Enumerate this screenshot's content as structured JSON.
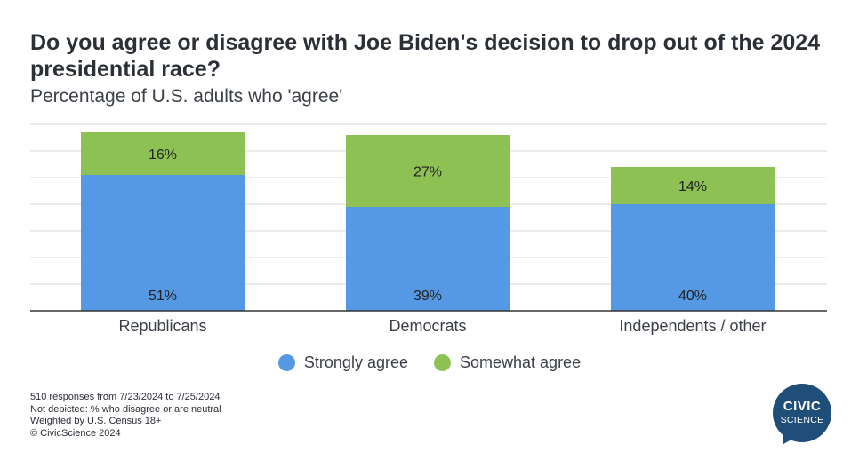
{
  "chart_data": {
    "type": "bar",
    "stacked": true,
    "title": "Do you agree or disagree with Joe Biden's decision to drop out of the 2024 presidential race?",
    "subtitle": "Percentage of U.S. adults who 'agree'",
    "categories": [
      "Republicans",
      "Democrats",
      "Independents / other"
    ],
    "series": [
      {
        "name": "Strongly agree",
        "values": [
          51,
          39,
          40
        ],
        "labels": [
          "51%",
          "39%",
          "40%"
        ],
        "color": "#5599e5"
      },
      {
        "name": "Somewhat agree",
        "values": [
          16,
          27,
          14
        ],
        "labels": [
          "16%",
          "27%",
          "14%"
        ],
        "color": "#8dc153"
      }
    ],
    "ylim": [
      0,
      70
    ],
    "grid": true,
    "legend_position": "bottom"
  },
  "notes": [
    "510 responses from 7/23/2024 to 7/25/2024",
    "Not depicted: % who disagree or are neutral",
    "Weighted by U.S. Census 18+",
    "© CivicScience 2024"
  ],
  "logo": {
    "line1": "CIVIC",
    "line2": "SCIENCE",
    "color": "#1f4e79"
  },
  "colors": {
    "strongly": "#5599e5",
    "somewhat": "#8dc153",
    "grid": "#d9d9d9",
    "axis": "#333333"
  }
}
